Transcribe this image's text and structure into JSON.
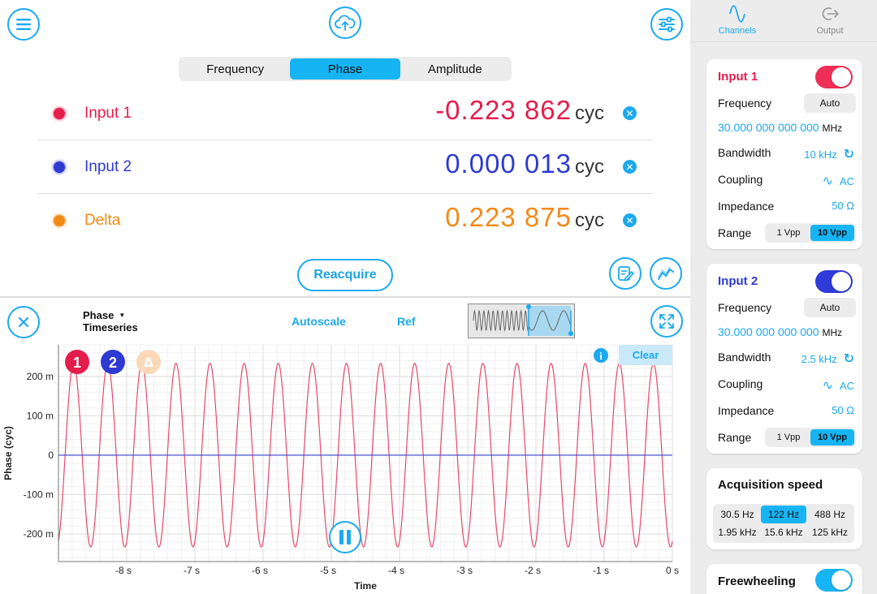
{
  "header": {
    "tabs": [
      {
        "label": "Frequency",
        "active": false
      },
      {
        "label": "Phase",
        "active": true
      },
      {
        "label": "Amplitude",
        "active": false
      }
    ]
  },
  "measurements": [
    {
      "name": "Input 1",
      "value": "-0.223 862",
      "unit": "cyc",
      "color": "#e51d4b"
    },
    {
      "name": "Input 2",
      "value": "0.000 013",
      "unit": "cyc",
      "color": "#2e3ad2"
    },
    {
      "name": "Delta",
      "value": "0.223 875",
      "unit": "cyc",
      "color": "#f28a17"
    }
  ],
  "reacquire_label": "Reacquire",
  "toolbar": {
    "quantity": "Phase",
    "mode": "Timeseries",
    "autoscale_label": "Autoscale",
    "ref_label": "Ref",
    "clear_label": "Clear"
  },
  "badges": [
    "1",
    "2",
    "Δ"
  ],
  "chart_data": {
    "type": "line",
    "xlabel": "Time",
    "ylabel": "Phase (cyc)",
    "xlim": [
      -9.0,
      0
    ],
    "ylim": [
      -270,
      280
    ],
    "x_ticks": [
      -8,
      -7,
      -6,
      -5,
      -4,
      -3,
      -2,
      -1,
      0
    ],
    "x_tick_labels": [
      "-8 s",
      "-7 s",
      "-6 s",
      "-5 s",
      "-4 s",
      "-3 s",
      "-2 s",
      "-1 s",
      "0 s"
    ],
    "y_ticks": [
      200,
      100,
      0,
      -100,
      -200
    ],
    "y_tick_labels": [
      "200 m",
      "100 m",
      "0",
      "-100 m",
      "-200 m"
    ],
    "grid": true,
    "series": [
      {
        "color": "#e8486c",
        "amplitude": 233,
        "period_s": 0.5,
        "phase_at_0s_deg": -70
      },
      {
        "color": "#3b42d6",
        "constant": 0
      }
    ]
  },
  "side_panel": {
    "tabs": [
      {
        "label": "Channels",
        "active": true,
        "icon": "sine-wave-icon"
      },
      {
        "label": "Output",
        "active": false,
        "icon": "output-arrow-icon"
      }
    ],
    "inputs": [
      {
        "title": "Input 1",
        "color": "#e51d4b",
        "enabled": true,
        "frequency_label": "Frequency",
        "frequency_button": "Auto",
        "frequency_value": "30.000 000 000 000",
        "frequency_unit": "MHz",
        "bandwidth_label": "Bandwidth",
        "bandwidth_value": "10 kHz",
        "coupling_label": "Coupling",
        "coupling_value": "AC",
        "impedance_label": "Impedance",
        "impedance_value": "50 Ω",
        "range_label": "Range",
        "range_options": [
          "1 Vpp",
          "10 Vpp"
        ],
        "range_selected": "10 Vpp"
      },
      {
        "title": "Input 2",
        "color": "#2e3ad2",
        "enabled": true,
        "frequency_label": "Frequency",
        "frequency_button": "Auto",
        "frequency_value": "30.000 000 000 000",
        "frequency_unit": "MHz",
        "bandwidth_label": "Bandwidth",
        "bandwidth_value": "2.5 kHz",
        "coupling_label": "Coupling",
        "coupling_value": "AC",
        "impedance_label": "Impedance",
        "impedance_value": "50 Ω",
        "range_label": "Range",
        "range_options": [
          "1 Vpp",
          "10 Vpp"
        ],
        "range_selected": "10 Vpp"
      }
    ],
    "acquisition": {
      "title": "Acquisition speed",
      "options": [
        "30.5 Hz",
        "122 Hz",
        "488 Hz",
        "1.95 kHz",
        "15.6 kHz",
        "125 kHz"
      ],
      "selected": "122 Hz"
    },
    "freewheeling": {
      "label": "Freewheeling",
      "enabled": true
    }
  },
  "colors": {
    "accent": "#1ba9ef",
    "segment_active": "#17b4f4"
  }
}
